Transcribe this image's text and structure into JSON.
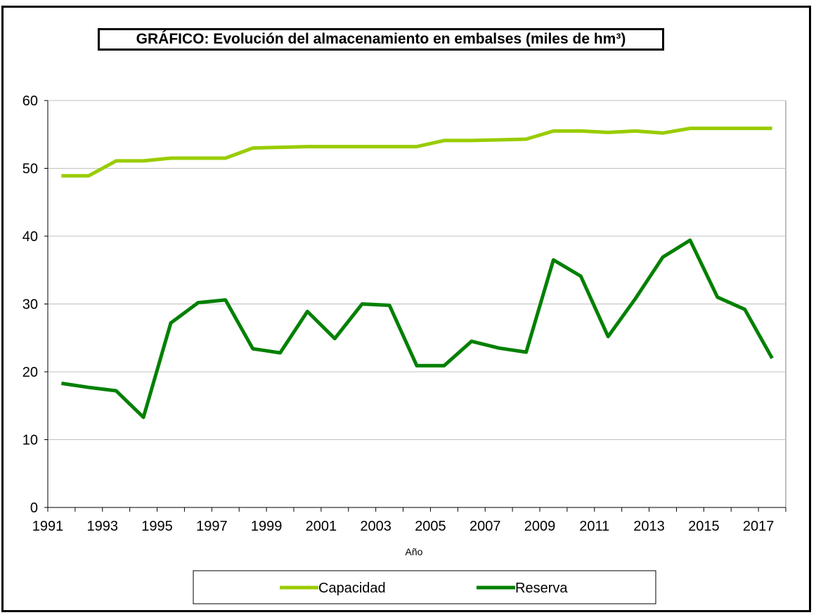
{
  "chart_data": {
    "type": "line",
    "title": "GRÁFICO: Evolución del almacenamiento en embalses (miles de hm³)",
    "xlabel": "Año",
    "ylabel": "",
    "ylim": [
      0,
      60
    ],
    "yticks": [
      0,
      10,
      20,
      30,
      40,
      50,
      60
    ],
    "x": [
      1991,
      1992,
      1993,
      1994,
      1995,
      1996,
      1997,
      1998,
      1999,
      2000,
      2001,
      2002,
      2003,
      2004,
      2005,
      2006,
      2007,
      2008,
      2009,
      2010,
      2011,
      2012,
      2013,
      2014,
      2015,
      2016,
      2017
    ],
    "xtick_labels": [
      "1991",
      "1993",
      "1995",
      "1997",
      "1999",
      "2001",
      "2003",
      "2005",
      "2007",
      "2009",
      "2011",
      "2013",
      "2015",
      "2017"
    ],
    "grid": "horizontal",
    "legend_position": "bottom",
    "series": [
      {
        "name": "Capacidad",
        "color": "#99cc00",
        "values": [
          48.9,
          48.9,
          51.1,
          51.1,
          51.5,
          51.5,
          51.5,
          53.0,
          53.1,
          53.2,
          53.2,
          53.2,
          53.2,
          53.2,
          54.1,
          54.1,
          54.2,
          54.3,
          55.5,
          55.5,
          55.3,
          55.5,
          55.2,
          55.9,
          55.9,
          55.9,
          55.9
        ]
      },
      {
        "name": "Reserva",
        "color": "#008000",
        "values": [
          18.3,
          17.7,
          17.2,
          13.3,
          27.2,
          30.2,
          30.6,
          23.4,
          22.8,
          28.9,
          24.9,
          30.0,
          29.8,
          20.9,
          20.9,
          24.5,
          23.5,
          22.9,
          36.5,
          34.1,
          25.2,
          30.8,
          36.9,
          39.4,
          31.0,
          29.2,
          22.0
        ]
      }
    ]
  }
}
